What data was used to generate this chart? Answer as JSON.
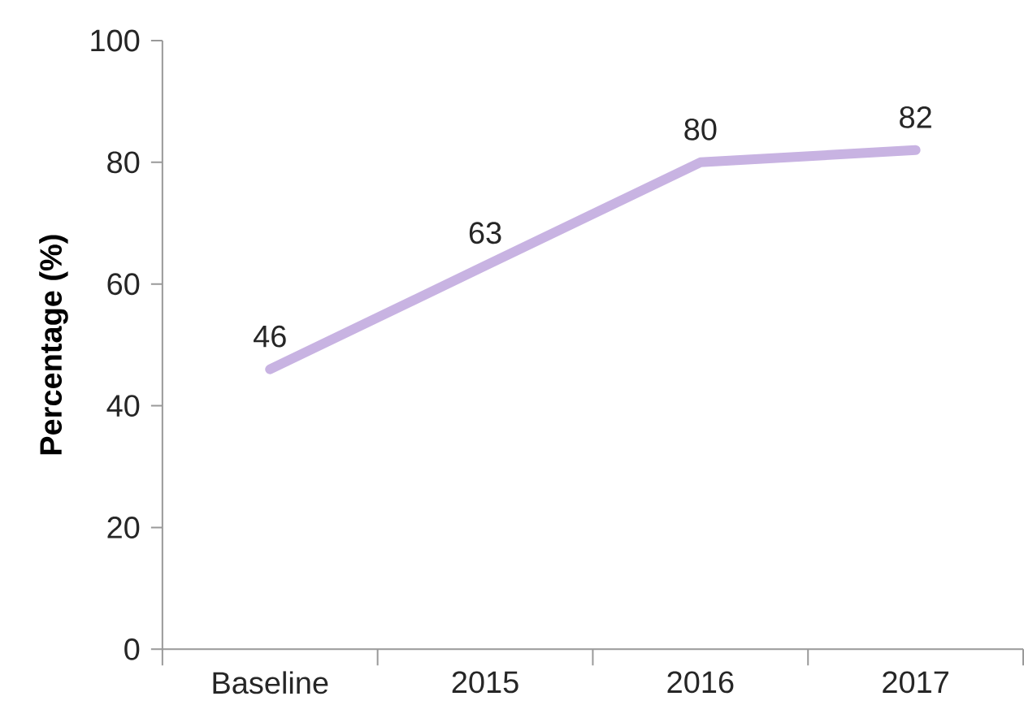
{
  "chart_data": {
    "type": "line",
    "ylabel": "Percentage (%)",
    "categories": [
      "Baseline",
      "2015",
      "2016",
      "2017"
    ],
    "series": [
      {
        "color": "#c8b3e2",
        "values": [
          46,
          63,
          80,
          82
        ]
      }
    ],
    "ylim": [
      0,
      100
    ],
    "yticks": [
      0,
      20,
      40,
      60,
      80,
      100
    ],
    "data_labels": true,
    "grid": false,
    "marker": "none",
    "line_style": "solid"
  }
}
